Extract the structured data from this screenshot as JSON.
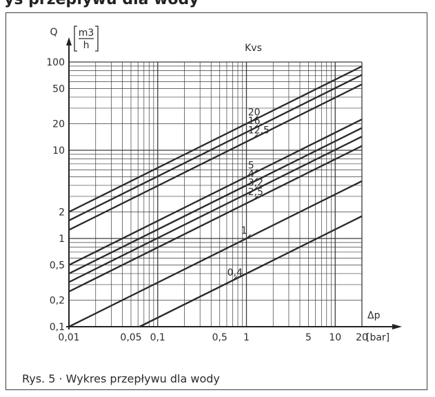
{
  "header": {
    "text": "ys przepływu dla wody"
  },
  "caption": {
    "text": "Rys. 5 · Wykres przepływu dla wody"
  },
  "chart_data": {
    "type": "line",
    "x_scale": "log",
    "y_scale": "log",
    "xlim": [
      0.01,
      20
    ],
    "ylim": [
      0.1,
      100
    ],
    "grid": true,
    "x_tick_labels": [
      "0,01",
      "0,05",
      "0,1",
      "0,5",
      "1",
      "5",
      "10",
      "20"
    ],
    "x_tick_values": [
      0.01,
      0.05,
      0.1,
      0.5,
      1,
      5,
      10,
      20
    ],
    "y_tick_labels": [
      "0,1",
      "0,2",
      "0,5",
      "1",
      "2",
      "10",
      "20",
      "50",
      "100"
    ],
    "y_tick_values": [
      0.1,
      0.2,
      0.5,
      1,
      2,
      10,
      20,
      50,
      100
    ],
    "x_unit": "[bar]",
    "xlabel": "Δp",
    "ylabel": "Q",
    "y_unit_num": "m3",
    "y_unit_den": "h",
    "legend_title": "Kvs",
    "series": [
      {
        "name": "20",
        "kvs": 20,
        "x": [
          0.01,
          20
        ],
        "y": [
          2,
          89.4
        ]
      },
      {
        "name": "16",
        "kvs": 16,
        "x": [
          0.01,
          20
        ],
        "y": [
          1.6,
          71.6
        ]
      },
      {
        "name": "12,5",
        "kvs": 12.5,
        "x": [
          0.01,
          20
        ],
        "y": [
          1.25,
          55.9
        ]
      },
      {
        "name": "5",
        "kvs": 5,
        "x": [
          0.01,
          20
        ],
        "y": [
          0.5,
          22.4
        ]
      },
      {
        "name": "4",
        "kvs": 4,
        "x": [
          0.01,
          20
        ],
        "y": [
          0.4,
          17.9
        ]
      },
      {
        "name": "3,2",
        "kvs": 3.2,
        "x": [
          0.01,
          20
        ],
        "y": [
          0.32,
          14.3
        ]
      },
      {
        "name": "2,5",
        "kvs": 2.5,
        "x": [
          0.01,
          20
        ],
        "y": [
          0.25,
          11.2
        ]
      },
      {
        "name": "1",
        "kvs": 1,
        "x": [
          0.01,
          20
        ],
        "y": [
          0.1,
          4.47
        ]
      },
      {
        "name": "0,4",
        "kvs": 0.4,
        "x": [
          0.0625,
          20
        ],
        "y": [
          0.1,
          1.79
        ]
      }
    ]
  }
}
